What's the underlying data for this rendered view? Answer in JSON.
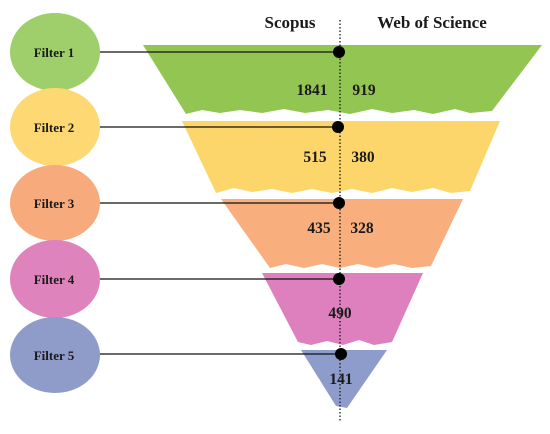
{
  "header": {
    "left_label": "Scopus",
    "right_label": "Web of Science"
  },
  "filters": [
    {
      "label": "Filter 1",
      "color": "#9fcf6a",
      "scopus": "1841",
      "wos": "919"
    },
    {
      "label": "Filter 2",
      "color": "#fdd873",
      "scopus": "515",
      "wos": "380"
    },
    {
      "label": "Filter 3",
      "color": "#f7aa7b",
      "scopus": "435",
      "wos": "328"
    },
    {
      "label": "Filter 4",
      "color": "#df83bd",
      "merged": "490"
    },
    {
      "label": "Filter 5",
      "color": "#8f9cca",
      "merged": "141"
    }
  ],
  "band_colors": [
    "#93c553",
    "#fcd56b",
    "#f8ae7d",
    "#dd80bd",
    "#8e9ccb"
  ]
}
